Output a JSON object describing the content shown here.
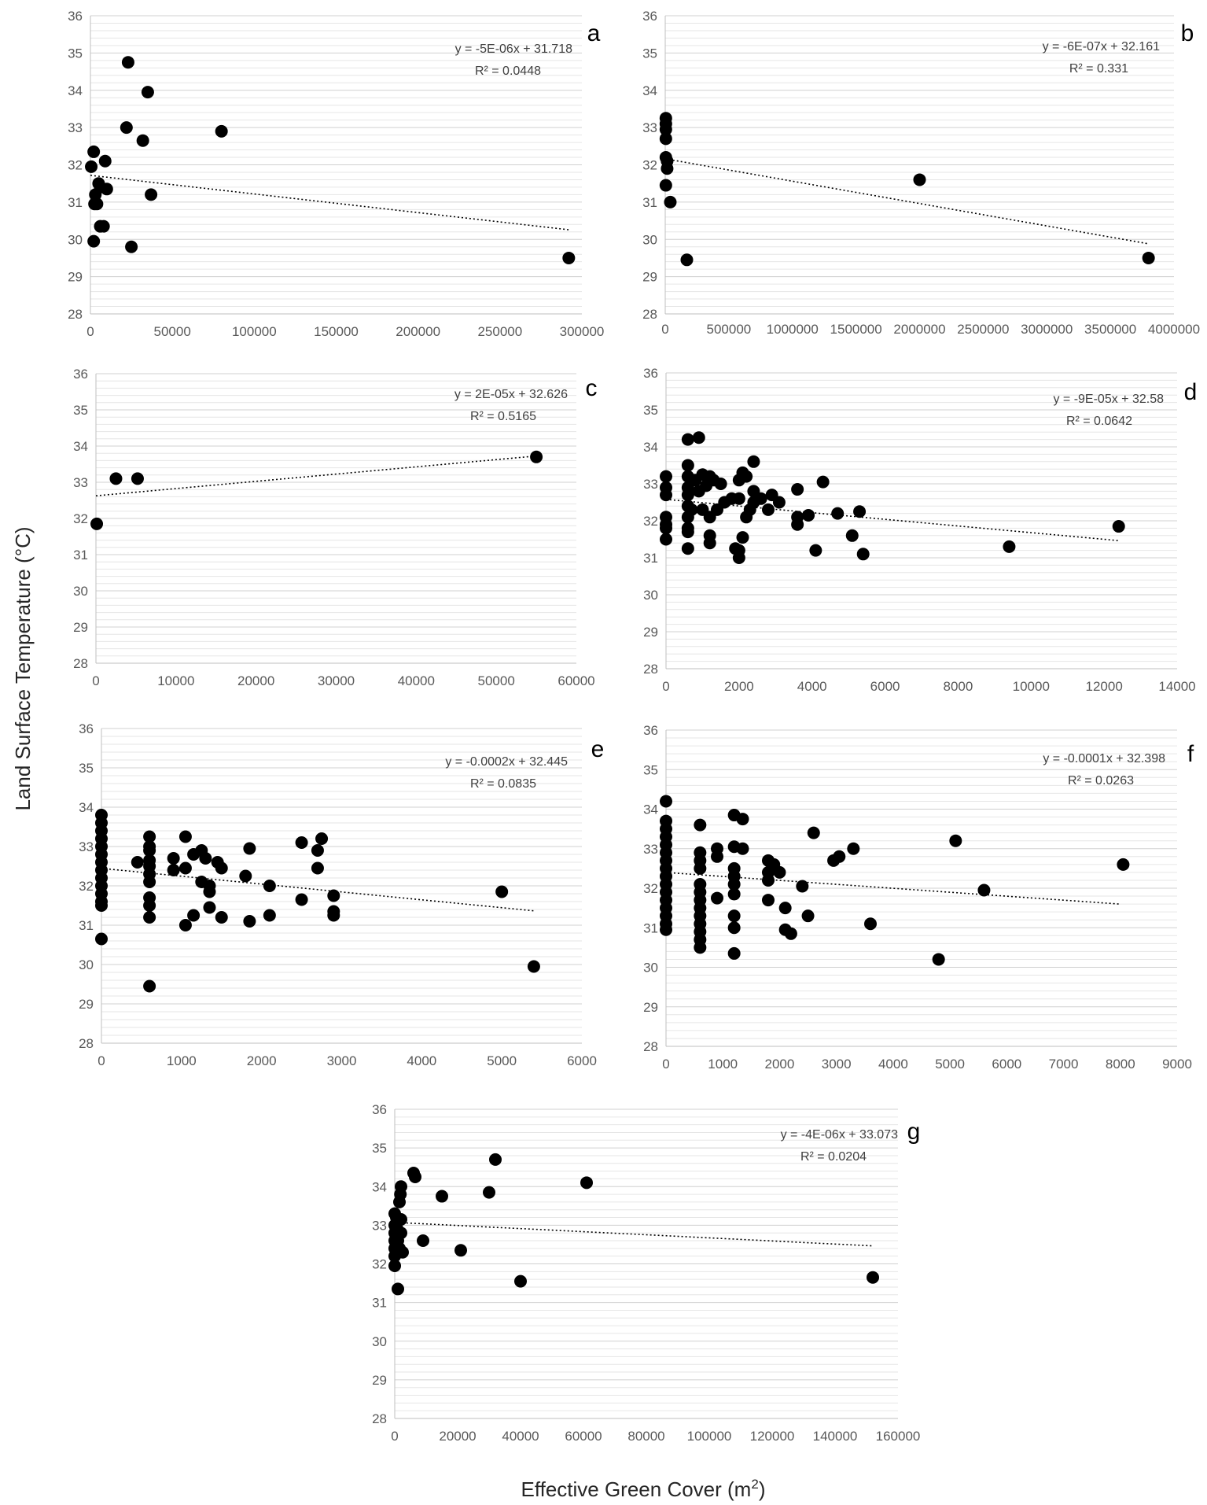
{
  "figure": {
    "ylabel": "Land Surface Temperature (°C)",
    "xlabel_main": "Effective Green Cover (m",
    "xlabel_sup": "2",
    "xlabel_end": ")"
  },
  "chart_data": [
    {
      "type": "scatter",
      "label": "a",
      "trend": "linear",
      "equation": "y = -5E-06x + 31.718",
      "r2": "R² = 0.0448",
      "xlim": [
        0,
        300000
      ],
      "ylim": [
        28,
        36
      ],
      "xticks": [
        0,
        50000,
        100000,
        150000,
        200000,
        250000,
        300000
      ],
      "yticks": [
        28,
        29,
        30,
        31,
        32,
        33,
        34,
        35,
        36
      ],
      "slope": -5e-06,
      "intercept": 31.718,
      "fit_x": [
        0,
        292000
      ],
      "points": [
        [
          500,
          31.95
        ],
        [
          2000,
          32.35
        ],
        [
          2500,
          30.95
        ],
        [
          3000,
          31.2
        ],
        [
          4000,
          30.95
        ],
        [
          5000,
          31.5
        ],
        [
          6000,
          31.4
        ],
        [
          6000,
          30.35
        ],
        [
          8000,
          30.35
        ],
        [
          9000,
          32.1
        ],
        [
          10000,
          31.35
        ],
        [
          2000,
          29.95
        ],
        [
          22000,
          33.0
        ],
        [
          23000,
          34.75
        ],
        [
          25000,
          29.8
        ],
        [
          32000,
          32.65
        ],
        [
          35000,
          33.95
        ],
        [
          37000,
          31.2
        ],
        [
          80000,
          32.9
        ],
        [
          292000,
          29.5
        ]
      ]
    },
    {
      "type": "scatter",
      "label": "b",
      "trend": "linear",
      "equation": "y = -6E-07x + 32.161",
      "r2": "R² = 0.331",
      "xlim": [
        0,
        4000000
      ],
      "ylim": [
        28,
        36
      ],
      "xticks": [
        0,
        500000,
        1000000,
        1500000,
        2000000,
        2500000,
        3000000,
        3500000,
        4000000
      ],
      "yticks": [
        28,
        29,
        30,
        31,
        32,
        33,
        34,
        35,
        36
      ],
      "slope": -6e-07,
      "intercept": 32.161,
      "fit_x": [
        0,
        3800000
      ],
      "points": [
        [
          5000,
          33.25
        ],
        [
          5000,
          33.1
        ],
        [
          5000,
          32.95
        ],
        [
          5000,
          32.7
        ],
        [
          5000,
          32.2
        ],
        [
          15000,
          32.1
        ],
        [
          15000,
          31.9
        ],
        [
          5000,
          31.45
        ],
        [
          40000,
          31.0
        ],
        [
          170000,
          29.45
        ],
        [
          2000000,
          31.6
        ],
        [
          3800000,
          29.5
        ]
      ]
    },
    {
      "type": "scatter",
      "label": "c",
      "trend": "linear",
      "equation": "y = 2E-05x + 32.626",
      "r2": "R² = 0.5165",
      "xlim": [
        0,
        60000
      ],
      "ylim": [
        28,
        36
      ],
      "xticks": [
        0,
        10000,
        20000,
        30000,
        40000,
        50000,
        60000
      ],
      "yticks": [
        28,
        29,
        30,
        31,
        32,
        33,
        34,
        35,
        36
      ],
      "slope": 2e-05,
      "intercept": 32.626,
      "fit_x": [
        0,
        55000
      ],
      "points": [
        [
          100,
          31.85
        ],
        [
          2500,
          33.1
        ],
        [
          5200,
          33.1
        ],
        [
          55000,
          33.7
        ]
      ]
    },
    {
      "type": "scatter",
      "label": "d",
      "trend": "linear",
      "equation": "y = -9E-05x + 32.58",
      "r2": "R² = 0.0642",
      "xlim": [
        0,
        14000
      ],
      "ylim": [
        28,
        36
      ],
      "xticks": [
        0,
        2000,
        4000,
        6000,
        8000,
        10000,
        12000,
        14000
      ],
      "yticks": [
        28,
        29,
        30,
        31,
        32,
        33,
        34,
        35,
        36
      ],
      "slope": -9e-05,
      "intercept": 32.58,
      "fit_x": [
        0,
        12400
      ],
      "points": [
        [
          0,
          33.2
        ],
        [
          0,
          32.9
        ],
        [
          0,
          32.7
        ],
        [
          0,
          32.1
        ],
        [
          0,
          31.9
        ],
        [
          0,
          31.8
        ],
        [
          0,
          31.5
        ],
        [
          600,
          34.2
        ],
        [
          900,
          34.25
        ],
        [
          600,
          33.5
        ],
        [
          600,
          33.2
        ],
        [
          800,
          33.1
        ],
        [
          600,
          32.9
        ],
        [
          600,
          32.7
        ],
        [
          900,
          32.8
        ],
        [
          1000,
          33.25
        ],
        [
          1100,
          32.95
        ],
        [
          1200,
          33.2
        ],
        [
          1300,
          33.1
        ],
        [
          1500,
          33.0
        ],
        [
          600,
          32.4
        ],
        [
          700,
          32.3
        ],
        [
          600,
          32.1
        ],
        [
          600,
          31.8
        ],
        [
          600,
          31.7
        ],
        [
          600,
          31.25
        ],
        [
          1000,
          32.3
        ],
        [
          1200,
          32.1
        ],
        [
          1400,
          32.3
        ],
        [
          1600,
          32.5
        ],
        [
          1800,
          32.6
        ],
        [
          2000,
          32.6
        ],
        [
          1200,
          31.6
        ],
        [
          1200,
          31.4
        ],
        [
          2000,
          33.1
        ],
        [
          2100,
          33.3
        ],
        [
          2200,
          33.2
        ],
        [
          2400,
          33.6
        ],
        [
          2400,
          32.8
        ],
        [
          2400,
          32.5
        ],
        [
          2300,
          32.3
        ],
        [
          2200,
          32.1
        ],
        [
          2600,
          32.6
        ],
        [
          2800,
          32.3
        ],
        [
          2900,
          32.7
        ],
        [
          3100,
          32.5
        ],
        [
          2100,
          31.55
        ],
        [
          1900,
          31.25
        ],
        [
          2000,
          31.2
        ],
        [
          2000,
          31.0
        ],
        [
          3600,
          32.85
        ],
        [
          3600,
          32.1
        ],
        [
          3600,
          31.9
        ],
        [
          3900,
          32.15
        ],
        [
          4100,
          31.2
        ],
        [
          4300,
          33.05
        ],
        [
          4700,
          32.2
        ],
        [
          5100,
          31.6
        ],
        [
          5300,
          32.25
        ],
        [
          5400,
          31.1
        ],
        [
          9400,
          31.3
        ],
        [
          12400,
          31.85
        ]
      ]
    },
    {
      "type": "scatter",
      "label": "e",
      "trend": "linear",
      "equation": "y = -0.0002x + 32.445",
      "r2": "R² = 0.0835",
      "xlim": [
        0,
        6000
      ],
      "ylim": [
        28,
        36
      ],
      "xticks": [
        0,
        1000,
        2000,
        3000,
        4000,
        5000,
        6000
      ],
      "yticks": [
        28,
        29,
        30,
        31,
        32,
        33,
        34,
        35,
        36
      ],
      "slope": -0.0002,
      "intercept": 32.445,
      "fit_x": [
        0,
        5400
      ],
      "points": [
        [
          0,
          33.8
        ],
        [
          0,
          33.6
        ],
        [
          0,
          33.4
        ],
        [
          0,
          33.2
        ],
        [
          0,
          33.0
        ],
        [
          0,
          32.8
        ],
        [
          0,
          32.6
        ],
        [
          0,
          32.4
        ],
        [
          0,
          32.2
        ],
        [
          0,
          32.0
        ],
        [
          0,
          31.8
        ],
        [
          0,
          31.6
        ],
        [
          0,
          31.5
        ],
        [
          0,
          30.65
        ],
        [
          450,
          32.6
        ],
        [
          600,
          32.65
        ],
        [
          600,
          32.5
        ],
        [
          600,
          32.3
        ],
        [
          600,
          32.1
        ],
        [
          600,
          31.7
        ],
        [
          600,
          31.5
        ],
        [
          600,
          31.2
        ],
        [
          600,
          29.45
        ],
        [
          600,
          33.25
        ],
        [
          600,
          32.9
        ],
        [
          600,
          33.0
        ],
        [
          900,
          32.7
        ],
        [
          900,
          32.4
        ],
        [
          1050,
          33.25
        ],
        [
          1050,
          32.45
        ],
        [
          1050,
          31.0
        ],
        [
          1150,
          32.8
        ],
        [
          1150,
          31.25
        ],
        [
          1250,
          32.9
        ],
        [
          1250,
          32.1
        ],
        [
          1300,
          32.7
        ],
        [
          1350,
          32.0
        ],
        [
          1350,
          31.85
        ],
        [
          1350,
          31.45
        ],
        [
          1450,
          32.6
        ],
        [
          1500,
          32.45
        ],
        [
          1500,
          31.2
        ],
        [
          1800,
          32.25
        ],
        [
          1850,
          31.1
        ],
        [
          1850,
          32.95
        ],
        [
          2100,
          32.0
        ],
        [
          2100,
          31.25
        ],
        [
          2500,
          33.1
        ],
        [
          2500,
          31.65
        ],
        [
          2700,
          32.9
        ],
        [
          2700,
          32.45
        ],
        [
          2750,
          33.2
        ],
        [
          2900,
          31.75
        ],
        [
          2900,
          31.35
        ],
        [
          2900,
          31.25
        ],
        [
          5000,
          31.85
        ],
        [
          5400,
          29.95
        ]
      ]
    },
    {
      "type": "scatter",
      "label": "f",
      "trend": "linear",
      "equation": "y = -0.0001x + 32.398",
      "r2": "R² = 0.0263",
      "xlim": [
        0,
        9000
      ],
      "ylim": [
        28,
        36
      ],
      "xticks": [
        0,
        1000,
        2000,
        3000,
        4000,
        5000,
        6000,
        7000,
        8000,
        9000
      ],
      "yticks": [
        28,
        29,
        30,
        31,
        32,
        33,
        34,
        35,
        36
      ],
      "slope": -0.0001,
      "intercept": 32.398,
      "fit_x": [
        0,
        8000
      ],
      "points": [
        [
          0,
          34.2
        ],
        [
          0,
          33.7
        ],
        [
          0,
          33.5
        ],
        [
          0,
          33.3
        ],
        [
          0,
          33.1
        ],
        [
          0,
          32.9
        ],
        [
          0,
          32.7
        ],
        [
          0,
          32.5
        ],
        [
          0,
          32.3
        ],
        [
          0,
          32.1
        ],
        [
          0,
          31.9
        ],
        [
          0,
          31.7
        ],
        [
          0,
          31.5
        ],
        [
          0,
          31.3
        ],
        [
          0,
          31.1
        ],
        [
          0,
          30.95
        ],
        [
          600,
          33.6
        ],
        [
          600,
          32.9
        ],
        [
          600,
          32.7
        ],
        [
          600,
          32.5
        ],
        [
          600,
          32.1
        ],
        [
          600,
          31.9
        ],
        [
          600,
          31.7
        ],
        [
          600,
          31.5
        ],
        [
          600,
          31.3
        ],
        [
          600,
          31.1
        ],
        [
          600,
          30.9
        ],
        [
          600,
          30.7
        ],
        [
          600,
          30.5
        ],
        [
          900,
          33.0
        ],
        [
          900,
          32.8
        ],
        [
          900,
          31.75
        ],
        [
          1200,
          33.85
        ],
        [
          1200,
          33.05
        ],
        [
          1200,
          32.5
        ],
        [
          1200,
          32.3
        ],
        [
          1200,
          32.1
        ],
        [
          1200,
          31.85
        ],
        [
          1200,
          31.3
        ],
        [
          1200,
          31.0
        ],
        [
          1200,
          30.35
        ],
        [
          1350,
          33.75
        ],
        [
          1350,
          33.0
        ],
        [
          1800,
          32.7
        ],
        [
          1800,
          32.4
        ],
        [
          1800,
          32.2
        ],
        [
          1800,
          31.7
        ],
        [
          1900,
          32.6
        ],
        [
          2000,
          32.4
        ],
        [
          2100,
          31.5
        ],
        [
          2100,
          30.95
        ],
        [
          2200,
          30.85
        ],
        [
          2400,
          32.05
        ],
        [
          2500,
          31.3
        ],
        [
          2600,
          33.4
        ],
        [
          2950,
          32.7
        ],
        [
          3050,
          32.8
        ],
        [
          3300,
          33.0
        ],
        [
          3600,
          31.1
        ],
        [
          4800,
          30.2
        ],
        [
          5100,
          33.2
        ],
        [
          5600,
          31.95
        ],
        [
          8050,
          32.6
        ]
      ]
    },
    {
      "type": "scatter",
      "label": "g",
      "trend": "linear",
      "equation": "y = -4E-06x + 33.073",
      "r2": "R² = 0.0204",
      "xlim": [
        0,
        160000
      ],
      "ylim": [
        28,
        36
      ],
      "xticks": [
        0,
        20000,
        40000,
        60000,
        80000,
        100000,
        120000,
        140000,
        160000
      ],
      "yticks": [
        28,
        29,
        30,
        31,
        32,
        33,
        34,
        35,
        36
      ],
      "slope": -4e-06,
      "intercept": 33.073,
      "fit_x": [
        0,
        152000
      ],
      "points": [
        [
          0,
          33.3
        ],
        [
          0,
          33.0
        ],
        [
          0,
          32.8
        ],
        [
          0,
          32.6
        ],
        [
          0,
          32.4
        ],
        [
          0,
          32.2
        ],
        [
          0,
          31.95
        ],
        [
          500,
          33.2
        ],
        [
          800,
          32.9
        ],
        [
          1000,
          32.6
        ],
        [
          1500,
          32.4
        ],
        [
          1500,
          33.6
        ],
        [
          1800,
          33.8
        ],
        [
          2000,
          34.0
        ],
        [
          2000,
          33.15
        ],
        [
          1000,
          31.35
        ],
        [
          2000,
          32.8
        ],
        [
          2500,
          32.3
        ],
        [
          6000,
          34.35
        ],
        [
          6500,
          34.25
        ],
        [
          9000,
          32.6
        ],
        [
          15000,
          33.75
        ],
        [
          21000,
          32.35
        ],
        [
          30000,
          33.85
        ],
        [
          32000,
          34.7
        ],
        [
          40000,
          31.55
        ],
        [
          61000,
          34.1
        ],
        [
          152000,
          31.65
        ]
      ]
    }
  ]
}
